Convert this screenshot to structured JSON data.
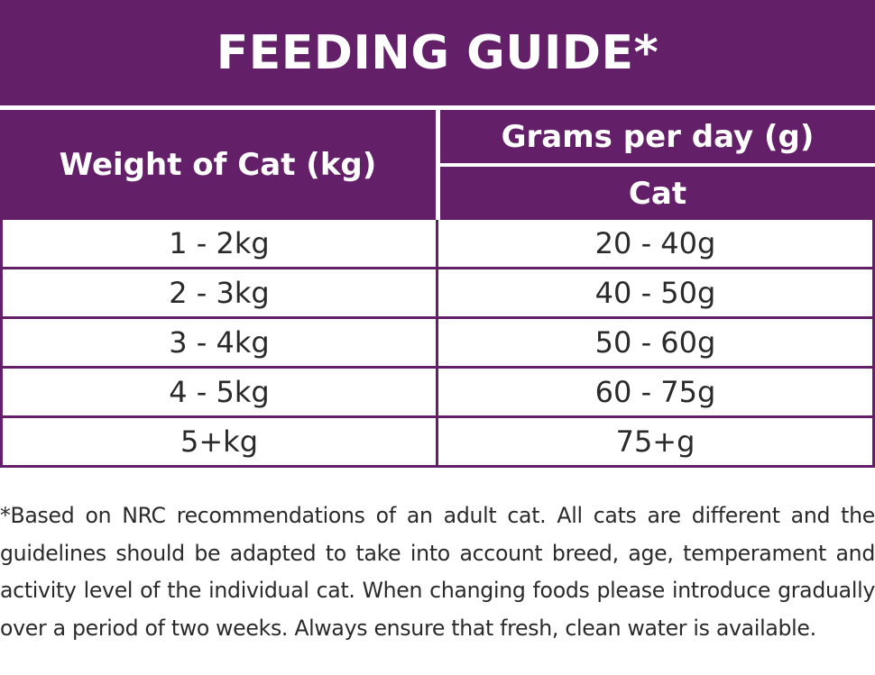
{
  "title": "FEEDING GUIDE*",
  "table": {
    "header_weight": "Weight of Cat (kg)",
    "header_grams": "Grams per day (g)",
    "header_sub": "Cat",
    "rows": [
      {
        "weight": "1 - 2kg",
        "grams": "20 - 40g"
      },
      {
        "weight": "2 - 3kg",
        "grams": "40 - 50g"
      },
      {
        "weight": "3 - 4kg",
        "grams": "50 - 60g"
      },
      {
        "weight": "4 - 5kg",
        "grams": "60 - 75g"
      },
      {
        "weight": "5+kg",
        "grams": "75+g"
      }
    ]
  },
  "footnote": "*Based on NRC recommendations of an adult cat. All cats are different and the guidelines should be adapted to take into account breed, age, temperament and activity level of the individual cat. When changing foods please introduce gradually over a period of two weeks. Always ensure that fresh, clean water is available.",
  "colors": {
    "brand_purple": "#632068",
    "text": "#2a2a2a",
    "background": "#ffffff"
  }
}
